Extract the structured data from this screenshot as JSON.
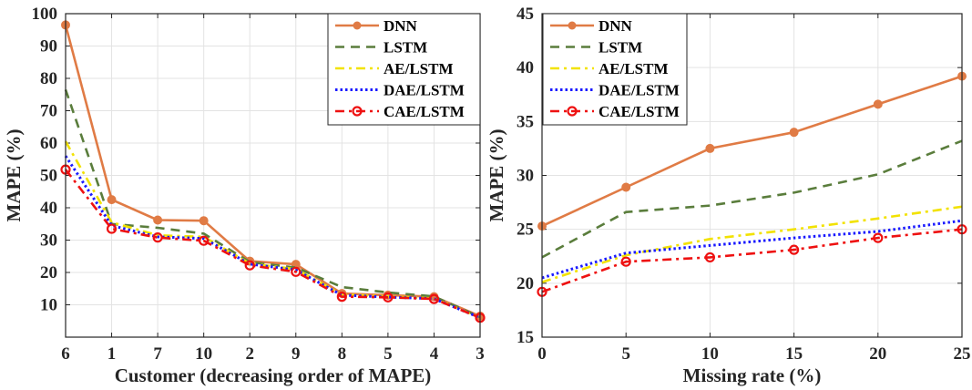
{
  "chart_data": [
    {
      "type": "line",
      "xlabel": "Customer (decreasing order of MAPE)",
      "ylabel": "MAPE (%)",
      "categories": [
        "6",
        "1",
        "7",
        "10",
        "2",
        "9",
        "8",
        "5",
        "4",
        "3"
      ],
      "ylim": [
        0,
        100
      ],
      "yticks": [
        10,
        20,
        30,
        40,
        50,
        60,
        70,
        80,
        90,
        100
      ],
      "grid": true,
      "legend_position": "top-right",
      "series": [
        {
          "name": "DNN",
          "color": "#e07b45",
          "style": "solid-circle",
          "values": [
            96.5,
            42.5,
            36.2,
            36.0,
            23.5,
            22.5,
            13.5,
            13.0,
            12.5,
            6.5
          ]
        },
        {
          "name": "LSTM",
          "color": "#5a7d3c",
          "style": "dashed",
          "values": [
            76.5,
            35.0,
            33.8,
            32.0,
            23.2,
            21.5,
            15.5,
            13.8,
            12.6,
            6.2
          ]
        },
        {
          "name": "AE/LSTM",
          "color": "#f2e200",
          "style": "dashdot",
          "values": [
            60.5,
            35.5,
            31.5,
            31.0,
            22.8,
            21.0,
            13.2,
            12.6,
            12.0,
            6.0
          ]
        },
        {
          "name": "DAE/LSTM",
          "color": "#1a1aff",
          "style": "dotted",
          "values": [
            56.0,
            34.5,
            31.0,
            30.5,
            22.6,
            20.8,
            13.0,
            12.4,
            11.9,
            6.0
          ]
        },
        {
          "name": "CAE/LSTM",
          "color": "#ee1111",
          "style": "dashdot-circle",
          "values": [
            51.8,
            33.5,
            30.8,
            29.8,
            22.2,
            20.2,
            12.5,
            12.3,
            11.8,
            6.0
          ]
        }
      ]
    },
    {
      "type": "line",
      "xlabel": "Missing rate (%)",
      "ylabel": "MAPE (%)",
      "x": [
        0,
        5,
        10,
        15,
        20,
        25
      ],
      "xlim": [
        0,
        25
      ],
      "xticks": [
        0,
        5,
        10,
        15,
        20,
        25
      ],
      "ylim": [
        15,
        45
      ],
      "yticks": [
        15,
        20,
        25,
        30,
        35,
        40,
        45
      ],
      "grid": true,
      "legend_position": "top-left",
      "series": [
        {
          "name": "DNN",
          "color": "#e07b45",
          "style": "solid-circle",
          "values": [
            25.3,
            28.9,
            32.5,
            34.0,
            36.6,
            39.2
          ]
        },
        {
          "name": "LSTM",
          "color": "#5a7d3c",
          "style": "dashed",
          "values": [
            22.4,
            26.6,
            27.2,
            28.4,
            30.1,
            33.2
          ]
        },
        {
          "name": "AE/LSTM",
          "color": "#f2e200",
          "style": "dashdot",
          "values": [
            20.1,
            22.6,
            24.1,
            25.0,
            26.0,
            27.1
          ]
        },
        {
          "name": "DAE/LSTM",
          "color": "#1a1aff",
          "style": "dotted",
          "values": [
            20.5,
            22.8,
            23.5,
            24.2,
            24.8,
            25.8
          ]
        },
        {
          "name": "CAE/LSTM",
          "color": "#ee1111",
          "style": "dashdot-circle",
          "values": [
            19.2,
            22.0,
            22.4,
            23.1,
            24.2,
            25.0
          ]
        }
      ]
    }
  ]
}
